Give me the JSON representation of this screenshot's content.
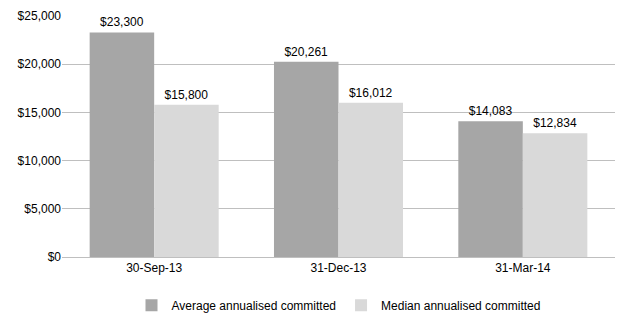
{
  "chart_data": {
    "type": "bar",
    "categories": [
      "30-Sep-13",
      "31-Dec-13",
      "31-Mar-14"
    ],
    "series": [
      {
        "name": "Average annualised committed",
        "color": "#a6a6a6",
        "values": [
          23300,
          20261,
          14083
        ],
        "value_labels": [
          "$23,300",
          "$20,261",
          "$14,083"
        ]
      },
      {
        "name": "Median annualised committed",
        "color": "#d9d9d9",
        "values": [
          15800,
          16012,
          12834
        ],
        "value_labels": [
          "$15,800",
          "$16,012",
          "$12,834"
        ]
      }
    ],
    "ylim": [
      0,
      25000
    ],
    "yticks": [
      {
        "value": 0,
        "label": "$0"
      },
      {
        "value": 5000,
        "label": "$5,000"
      },
      {
        "value": 10000,
        "label": "$10,000"
      },
      {
        "value": 15000,
        "label": "$15,000"
      },
      {
        "value": 20000,
        "label": "$20,000"
      },
      {
        "value": 25000,
        "label": "$25,000"
      }
    ],
    "grid": true,
    "legend": "bottom",
    "data_labels": true
  }
}
